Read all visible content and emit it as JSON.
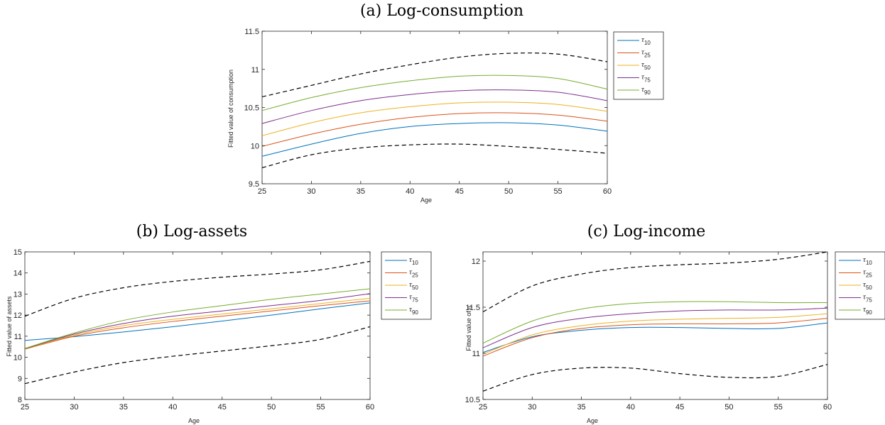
{
  "chart_data": [
    {
      "type": "line",
      "title": "(a) Log-consumption",
      "xlabel": "Age",
      "ylabel": "Fitted value of consumption",
      "xlim": [
        25,
        60
      ],
      "ylim": [
        9.5,
        11.5
      ],
      "xticks": [
        25,
        30,
        35,
        40,
        45,
        50,
        55,
        60
      ],
      "xtick_labels": [
        "25",
        "30",
        "35",
        "40",
        "45",
        "50",
        "55",
        "60"
      ],
      "yticks": [
        9.5,
        10,
        10.5,
        11,
        11.5
      ],
      "ytick_labels": [
        "9.5",
        "10",
        "10.5",
        "11",
        "11.5"
      ],
      "grid": false,
      "legend_position": "outside-right",
      "x": [
        25,
        30,
        35,
        40,
        45,
        50,
        55,
        60
      ],
      "series": [
        {
          "name": "τ10",
          "label_main": "τ",
          "label_sub": "10",
          "color": "#0072BD",
          "style": "solid",
          "values": [
            9.86,
            10.02,
            10.16,
            10.25,
            10.29,
            10.3,
            10.27,
            10.19
          ]
        },
        {
          "name": "τ25",
          "label_main": "τ",
          "label_sub": "25",
          "color": "#D95319",
          "style": "solid",
          "values": [
            9.99,
            10.15,
            10.28,
            10.37,
            10.42,
            10.43,
            10.4,
            10.32
          ]
        },
        {
          "name": "τ50",
          "label_main": "τ",
          "label_sub": "50",
          "color": "#EDB120",
          "style": "solid",
          "values": [
            10.13,
            10.3,
            10.43,
            10.51,
            10.56,
            10.57,
            10.54,
            10.45
          ]
        },
        {
          "name": "τ75",
          "label_main": "τ",
          "label_sub": "75",
          "color": "#7E2F8E",
          "style": "solid",
          "values": [
            10.29,
            10.46,
            10.59,
            10.67,
            10.72,
            10.73,
            10.7,
            10.59
          ]
        },
        {
          "name": "τ90",
          "label_main": "τ",
          "label_sub": "90",
          "color": "#77AC30",
          "style": "solid",
          "values": [
            10.46,
            10.63,
            10.76,
            10.85,
            10.91,
            10.92,
            10.88,
            10.74
          ]
        },
        {
          "color": "#000000",
          "style": "dashed",
          "values": [
            10.64,
            10.79,
            10.94,
            11.06,
            11.16,
            11.21,
            11.2,
            11.1
          ]
        },
        {
          "color": "#000000",
          "style": "dashed",
          "values": [
            9.71,
            9.88,
            9.97,
            10.01,
            10.02,
            9.99,
            9.95,
            9.9
          ]
        }
      ]
    },
    {
      "type": "line",
      "title": "(b) Log-assets",
      "xlabel": "Age",
      "ylabel": "Fitted value of assets",
      "xlim": [
        25,
        60
      ],
      "ylim": [
        8,
        15
      ],
      "xticks": [
        25,
        30,
        35,
        40,
        45,
        50,
        55,
        60
      ],
      "xtick_labels": [
        "25",
        "30",
        "35",
        "40",
        "45",
        "50",
        "55",
        "60"
      ],
      "yticks": [
        8,
        9,
        10,
        11,
        12,
        13,
        14,
        15
      ],
      "ytick_labels": [
        "8",
        "9",
        "10",
        "11",
        "12",
        "13",
        "14",
        "15"
      ],
      "grid": false,
      "legend_position": "outside-right",
      "x": [
        25,
        30,
        35,
        40,
        45,
        50,
        55,
        60
      ],
      "series": [
        {
          "name": "τ10",
          "label_main": "τ",
          "label_sub": "10",
          "color": "#0072BD",
          "style": "solid",
          "values": [
            10.8,
            10.98,
            11.2,
            11.45,
            11.72,
            12.0,
            12.3,
            12.58
          ]
        },
        {
          "name": "τ25",
          "label_main": "τ",
          "label_sub": "25",
          "color": "#D95319",
          "style": "solid",
          "values": [
            10.38,
            11.0,
            11.4,
            11.7,
            11.95,
            12.2,
            12.45,
            12.68
          ]
        },
        {
          "name": "τ50",
          "label_main": "τ",
          "label_sub": "50",
          "color": "#EDB120",
          "style": "solid",
          "values": [
            10.38,
            11.05,
            11.5,
            11.8,
            12.05,
            12.3,
            12.55,
            12.8
          ]
        },
        {
          "name": "τ75",
          "label_main": "τ",
          "label_sub": "75",
          "color": "#7E2F8E",
          "style": "solid",
          "values": [
            10.4,
            11.1,
            11.6,
            11.95,
            12.2,
            12.45,
            12.7,
            13.02
          ]
        },
        {
          "name": "τ90",
          "label_main": "τ",
          "label_sub": "90",
          "color": "#77AC30",
          "style": "solid",
          "values": [
            10.42,
            11.15,
            11.75,
            12.15,
            12.45,
            12.75,
            13.0,
            13.25
          ]
        },
        {
          "color": "#000000",
          "style": "dashed",
          "values": [
            11.95,
            12.8,
            13.3,
            13.6,
            13.8,
            13.95,
            14.15,
            14.55
          ]
        },
        {
          "color": "#000000",
          "style": "dashed",
          "values": [
            8.75,
            9.3,
            9.75,
            10.05,
            10.3,
            10.55,
            10.85,
            11.45
          ]
        }
      ]
    },
    {
      "type": "line",
      "title": "(c) Log-income",
      "xlabel": "Age",
      "ylabel": "Fitted value of",
      "ylabel_symbol": "η",
      "xlim": [
        25,
        60
      ],
      "ylim": [
        10.5,
        12.1
      ],
      "xticks": [
        25,
        30,
        35,
        40,
        45,
        50,
        55,
        60
      ],
      "xtick_labels": [
        "25",
        "30",
        "35",
        "40",
        "45",
        "50",
        "55",
        "60"
      ],
      "yticks": [
        10.5,
        11,
        11.5,
        12
      ],
      "ytick_labels": [
        "10.5",
        "11",
        "11.5",
        "12"
      ],
      "grid": false,
      "legend_position": "outside-right",
      "x": [
        25,
        30,
        35,
        40,
        45,
        50,
        55,
        60
      ],
      "series": [
        {
          "name": "τ10",
          "label_main": "τ",
          "label_sub": "10",
          "color": "#0072BD",
          "style": "solid",
          "values": [
            11.01,
            11.18,
            11.25,
            11.28,
            11.28,
            11.27,
            11.27,
            11.33
          ]
        },
        {
          "name": "τ25",
          "label_main": "τ",
          "label_sub": "25",
          "color": "#D95319",
          "style": "solid",
          "values": [
            10.97,
            11.17,
            11.27,
            11.31,
            11.32,
            11.32,
            11.33,
            11.38
          ]
        },
        {
          "name": "τ50",
          "label_main": "τ",
          "label_sub": "50",
          "color": "#EDB120",
          "style": "solid",
          "values": [
            10.99,
            11.2,
            11.3,
            11.35,
            11.37,
            11.38,
            11.39,
            11.43
          ]
        },
        {
          "name": "τ75",
          "label_main": "τ",
          "label_sub": "75",
          "color": "#7E2F8E",
          "style": "solid",
          "values": [
            11.06,
            11.28,
            11.38,
            11.43,
            11.46,
            11.47,
            11.47,
            11.49
          ]
        },
        {
          "name": "τ90",
          "label_main": "τ",
          "label_sub": "90",
          "color": "#77AC30",
          "style": "solid",
          "values": [
            11.11,
            11.35,
            11.48,
            11.54,
            11.56,
            11.56,
            11.55,
            11.55
          ]
        },
        {
          "color": "#000000",
          "style": "dashed",
          "values": [
            11.45,
            11.73,
            11.86,
            11.93,
            11.96,
            11.98,
            12.02,
            12.1
          ]
        },
        {
          "color": "#000000",
          "style": "dashed",
          "values": [
            10.59,
            10.77,
            10.84,
            10.84,
            10.78,
            10.74,
            10.75,
            10.88
          ]
        }
      ]
    }
  ]
}
